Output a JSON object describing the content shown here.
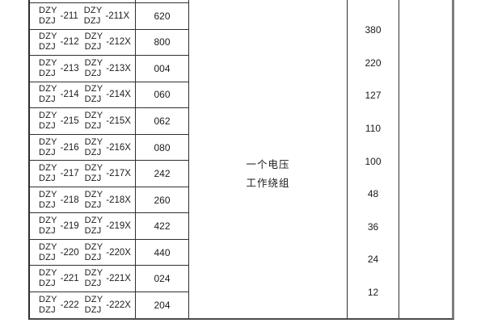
{
  "table": {
    "rows": [
      {
        "series_top": "DZY",
        "series_bottom": "DZJ",
        "model": "-211",
        "model_x": "-211X",
        "code": "620"
      },
      {
        "series_top": "DZY",
        "series_bottom": "DZJ",
        "model": "-212",
        "model_x": "-212X",
        "code": "800"
      },
      {
        "series_top": "DZY",
        "series_bottom": "DZJ",
        "model": "-213",
        "model_x": "-213X",
        "code": "004"
      },
      {
        "series_top": "DZY",
        "series_bottom": "DZJ",
        "model": "-214",
        "model_x": "-214X",
        "code": "060"
      },
      {
        "series_top": "DZY",
        "series_bottom": "DZJ",
        "model": "-215",
        "model_x": "-215X",
        "code": "062"
      },
      {
        "series_top": "DZY",
        "series_bottom": "DZJ",
        "model": "-216",
        "model_x": "-216X",
        "code": "080"
      },
      {
        "series_top": "DZY",
        "series_bottom": "DZJ",
        "model": "-217",
        "model_x": "-217X",
        "code": "242"
      },
      {
        "series_top": "DZY",
        "series_bottom": "DZJ",
        "model": "-218",
        "model_x": "-218X",
        "code": "260"
      },
      {
        "series_top": "DZY",
        "series_bottom": "DZJ",
        "model": "-219",
        "model_x": "-219X",
        "code": "422"
      },
      {
        "series_top": "DZY",
        "series_bottom": "DZJ",
        "model": "-220",
        "model_x": "-220X",
        "code": "440"
      },
      {
        "series_top": "DZY",
        "series_bottom": "DZJ",
        "model": "-221",
        "model_x": "-221X",
        "code": "024"
      },
      {
        "series_top": "DZY",
        "series_bottom": "DZJ",
        "model": "-222",
        "model_x": "-222X",
        "code": "204"
      }
    ],
    "winding_label": {
      "line1": "一个电压",
      "line2": "工作绕组"
    },
    "voltages": [
      "380",
      "220",
      "127",
      "110",
      "100",
      "48",
      "36",
      "24",
      "12"
    ]
  },
  "colors": {
    "background": "#ffffff",
    "text": "#1b1b1b",
    "grid_border": "#2f2f2f",
    "outer_right_border": "#7e7e7e"
  }
}
